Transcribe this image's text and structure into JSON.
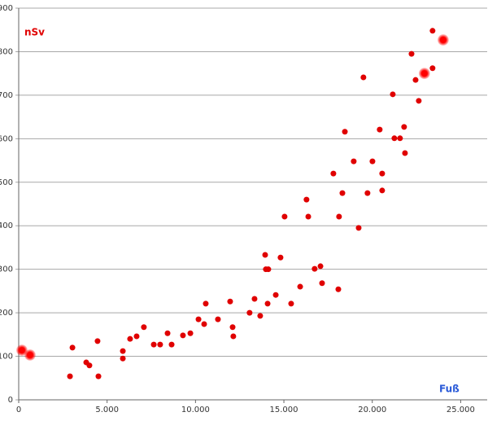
{
  "chart_data": {
    "type": "scatter",
    "y_label": "nSv",
    "y_label_color": "#e00000",
    "x_label": "Fuß",
    "x_label_color": "#2a5ad8",
    "xlim": [
      0,
      26500
    ],
    "xticks": [
      0,
      {
        "value": 5000,
        "label": "5.000"
      },
      {
        "value": 10000,
        "label": "10.000"
      },
      {
        "value": 15000,
        "label": "15.000"
      },
      {
        "value": 20000,
        "label": "20.000"
      },
      {
        "value": 25000,
        "label": "25.000"
      }
    ],
    "ylim": [
      0,
      900
    ],
    "yticks": [
      0,
      100,
      200,
      300,
      400,
      500,
      600,
      700,
      800,
      900
    ],
    "grid": true,
    "series": [
      {
        "color": "#e00000",
        "marker_size": 3.5,
        "x": [
          2900,
          3040,
          3820,
          4000,
          4460,
          4510,
          5890,
          5890,
          6300,
          6670,
          7080,
          7640,
          8000,
          8420,
          8650,
          9290,
          9710,
          10170,
          10490,
          10580,
          11270,
          11960,
          12100,
          12140,
          13060,
          13340,
          13660,
          13940,
          13980,
          14120,
          14080,
          14540,
          14810,
          15040,
          15410,
          15920,
          16280,
          16380,
          16740,
          17070,
          17160,
          17800,
          18080,
          18120,
          18310,
          18450,
          18950,
          19230,
          19500,
          19730,
          20010,
          20420,
          20560,
          20560,
          21160,
          21250,
          21570,
          21800,
          21850,
          22220,
          22450,
          22630,
          23410,
          23410
        ],
        "values": [
          54,
          120,
          86,
          79,
          135,
          54,
          112,
          95,
          140,
          146,
          167,
          127,
          127,
          153,
          127,
          148,
          153,
          185,
          174,
          221,
          185,
          226,
          167,
          146,
          200,
          232,
          193,
          333,
          300,
          300,
          221,
          241,
          327,
          421,
          221,
          260,
          460,
          421,
          301,
          307,
          268,
          520,
          254,
          421,
          475,
          616,
          548,
          395,
          741,
          475,
          548,
          621,
          520,
          481,
          702,
          601,
          601,
          627,
          567,
          795,
          735,
          687,
          848,
          762
        ]
      },
      {
        "color": "#ff0000",
        "marker_size": 7,
        "x": [
          180,
          640,
          22950,
          24010
        ],
        "values": [
          114,
          103,
          750,
          827
        ]
      }
    ]
  }
}
